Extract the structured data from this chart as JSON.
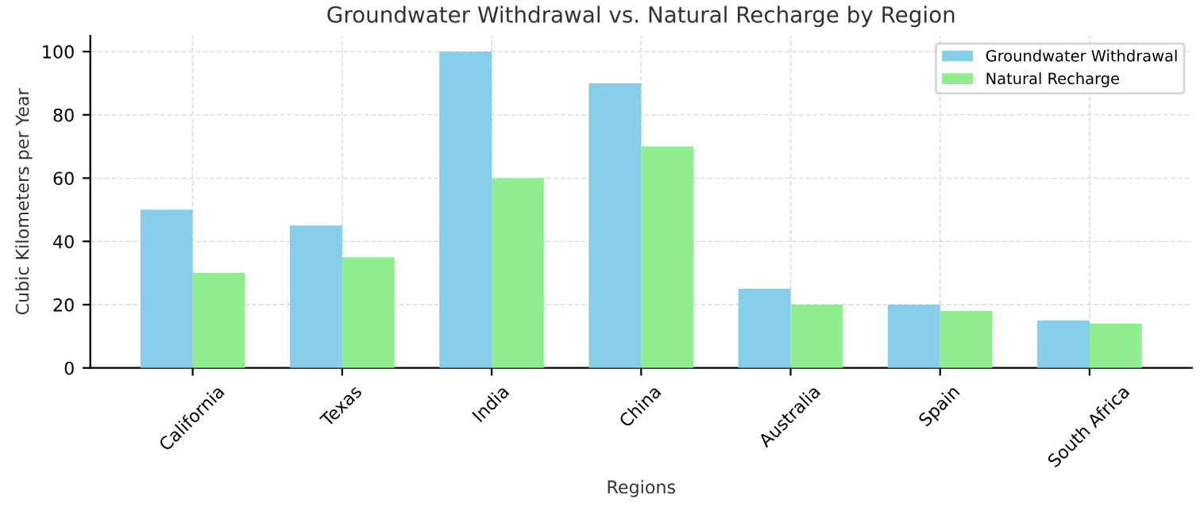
{
  "chart_data": {
    "type": "bar",
    "title": "Groundwater Withdrawal vs. Natural Recharge by Region",
    "xlabel": "Regions",
    "ylabel": "Cubic Kilometers per Year",
    "categories": [
      "California",
      "Texas",
      "India",
      "China",
      "Australia",
      "Spain",
      "South Africa"
    ],
    "series": [
      {
        "name": "Groundwater Withdrawal",
        "color": "#87ceeb",
        "values": [
          50,
          45,
          100,
          90,
          25,
          20,
          15
        ]
      },
      {
        "name": "Natural Recharge",
        "color": "#90ee90",
        "values": [
          30,
          35,
          60,
          70,
          20,
          18,
          14
        ]
      }
    ],
    "ylim": [
      0,
      105
    ],
    "yticks": [
      0,
      20,
      40,
      60,
      80,
      100
    ],
    "grid": true,
    "legend": "top right"
  }
}
